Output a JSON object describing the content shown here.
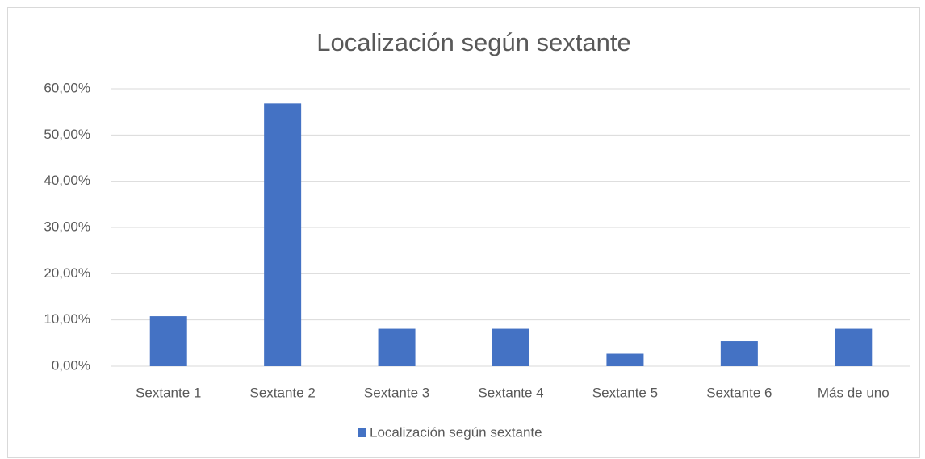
{
  "chart_data": {
    "type": "bar",
    "title": "Localización según sextante",
    "categories": [
      "Sextante 1",
      "Sextante 2",
      "Sextante 3",
      "Sextante 4",
      "Sextante 5",
      "Sextante 6",
      "Más de uno"
    ],
    "series": [
      {
        "name": "Localización según sextante",
        "color": "#4472c4",
        "values": [
          10.8,
          56.8,
          8.1,
          8.1,
          2.7,
          5.4,
          8.1
        ]
      }
    ],
    "ylim": [
      0,
      60
    ],
    "yticks": [
      {
        "value": 0,
        "label": "0,00%"
      },
      {
        "value": 10,
        "label": "10,00%"
      },
      {
        "value": 20,
        "label": "20,00%"
      },
      {
        "value": 30,
        "label": "30,00%"
      },
      {
        "value": 40,
        "label": "40,00%"
      },
      {
        "value": 50,
        "label": "50,00%"
      },
      {
        "value": 60,
        "label": "60,00%"
      }
    ],
    "grid": true,
    "legend": "bottom"
  }
}
